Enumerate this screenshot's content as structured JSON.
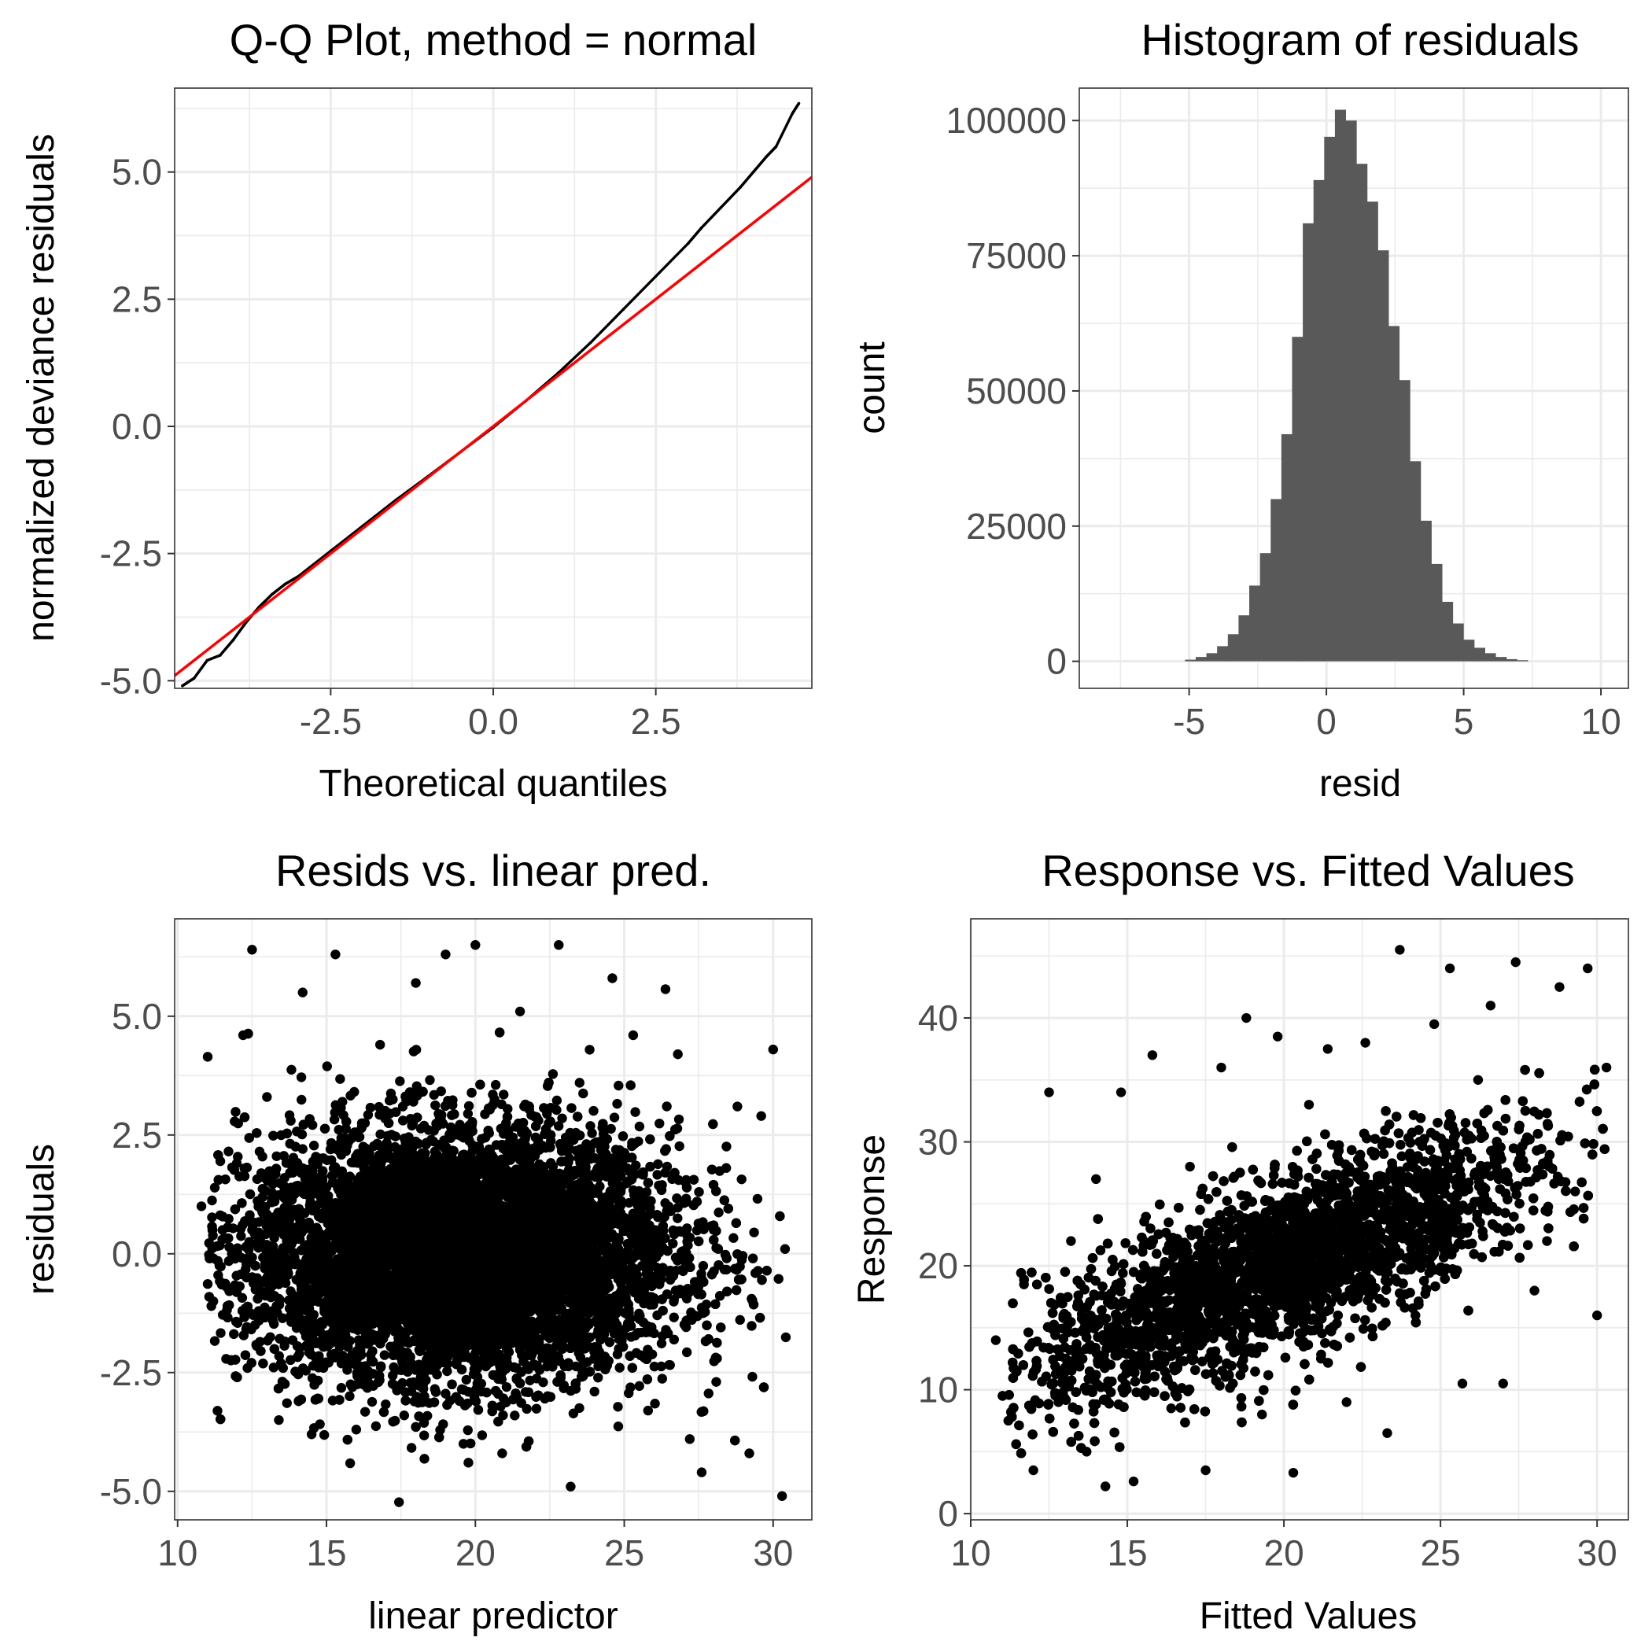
{
  "chart_data": [
    {
      "id": "qq",
      "type": "scatter",
      "title": "Q-Q Plot, method = normal",
      "xlabel": "Theoretical quantiles",
      "ylabel": "normalized deviance residuals",
      "xlim": [
        -4.9,
        4.9
      ],
      "ylim": [
        -5.15,
        6.65
      ],
      "xticks": [
        -2.5,
        0.0,
        2.5
      ],
      "xtick_labels": [
        "-2.5",
        "0.0",
        "2.5"
      ],
      "yticks": [
        -5.0,
        -2.5,
        0.0,
        2.5,
        5.0
      ],
      "ytick_labels": [
        "-5.0",
        "-2.5",
        "0.0",
        "2.5",
        "5.0"
      ],
      "grid": true,
      "reference_line": {
        "intercept": 0.0,
        "slope": 1.0,
        "color": "#ff0000"
      },
      "point_color": "#000000",
      "series": [
        {
          "x": [
            -4.78,
            -4.6,
            -4.4,
            -4.2,
            -4.0,
            -3.8,
            -3.6,
            -3.4,
            -3.2,
            -3.0,
            -2.5,
            -2.0,
            -1.5,
            -1.0,
            -0.5,
            0.0,
            0.5,
            1.0,
            1.5,
            2.0,
            2.5,
            3.0,
            3.2,
            3.5,
            3.8,
            4.0,
            4.2,
            4.35,
            4.6,
            4.7
          ],
          "y": [
            -5.1,
            -4.95,
            -4.6,
            -4.5,
            -4.2,
            -3.85,
            -3.55,
            -3.3,
            -3.1,
            -2.95,
            -2.45,
            -1.95,
            -1.45,
            -0.98,
            -0.5,
            -0.02,
            0.5,
            1.05,
            1.65,
            2.3,
            2.95,
            3.6,
            3.9,
            4.3,
            4.7,
            5.0,
            5.3,
            5.5,
            6.15,
            6.35
          ]
        }
      ]
    },
    {
      "id": "hist",
      "type": "bar",
      "title": "Histogram of residuals",
      "xlabel": "resid",
      "ylabel": "count",
      "xlim": [
        -9,
        11
      ],
      "ylim": [
        -5000,
        106000
      ],
      "xticks": [
        -5,
        0,
        5,
        10
      ],
      "xtick_labels": [
        "-5",
        "0",
        "5",
        "10"
      ],
      "yticks": [
        0,
        25000,
        50000,
        75000,
        100000
      ],
      "ytick_labels": [
        "0",
        "25000",
        "50000",
        "75000",
        "100000"
      ],
      "grid": true,
      "bar_color": "#595959",
      "bin_start": -5.15,
      "bin_width": 0.39,
      "values": [
        300,
        800,
        1500,
        2800,
        5000,
        8500,
        14000,
        20000,
        30000,
        42000,
        60000,
        81000,
        89000,
        97000,
        102000,
        100000,
        92000,
        85000,
        76000,
        62000,
        52000,
        37000,
        26000,
        18000,
        11000,
        7000,
        4000,
        2500,
        1500,
        800,
        400,
        200
      ]
    },
    {
      "id": "resid_lp",
      "type": "scatter",
      "title": "Resids vs. linear pred.",
      "xlabel": "linear predictor",
      "ylabel": "residuals",
      "xlim": [
        9.9,
        31.3
      ],
      "ylim": [
        -5.6,
        7.05
      ],
      "xticks": [
        10,
        15,
        20,
        25,
        30
      ],
      "xtick_labels": [
        "10",
        "15",
        "20",
        "25",
        "30"
      ],
      "yticks": [
        -5.0,
        -2.5,
        0.0,
        2.5,
        5.0
      ],
      "ytick_labels": [
        "-5.0",
        "-2.5",
        "0.0",
        "2.5",
        "5.0"
      ],
      "grid": true,
      "point_color": "#000000",
      "series": [
        {
          "x": [
            10.8,
            11.2,
            11.5,
            12.0,
            12.2,
            12.5,
            12.6,
            13.0,
            13.4,
            13.8,
            14.2,
            14.5,
            15.0,
            15.3,
            15.5,
            16.0,
            16.8,
            17.3,
            18.0,
            18.5,
            19.0,
            19.6,
            20.0,
            20.2,
            20.9,
            21.5,
            22.3,
            22.8,
            23.2,
            23.5,
            24.0,
            24.4,
            24.6,
            25.3,
            25.8,
            26.4,
            26.8,
            27.2,
            27.6,
            28.0,
            28.8,
            29.2,
            29.6,
            30.0,
            30.3,
            30.4
          ],
          "y": [
            1.0,
            -1.0,
            0.3,
            -2.6,
            4.6,
            6.4,
            -1.5,
            3.3,
            -3.5,
            2.8,
            5.5,
            -3.8,
            -1.0,
            6.3,
            1.5,
            -3.7,
            4.4,
            -1.2,
            5.7,
            0.4,
            6.3,
            -4.0,
            6.5,
            0.5,
            -4.2,
            5.1,
            -1.3,
            6.5,
            -4.9,
            3.6,
            -2.9,
            0.9,
            5.8,
            4.6,
            -3.3,
            -1.6,
            4.2,
            -3.9,
            -4.6,
            0.6,
            3.1,
            -4.2,
            2.9,
            4.3,
            -5.1,
            0.1
          ]
        }
      ]
    },
    {
      "id": "resp_fit",
      "type": "scatter",
      "title": "Response vs. Fitted Values",
      "xlabel": "Fitted Values",
      "ylabel": "Response",
      "xlim": [
        10.0,
        31.0
      ],
      "ylim": [
        -0.5,
        48.0
      ],
      "xticks": [
        10,
        15,
        20,
        25,
        30
      ],
      "xtick_labels": [
        "10",
        "15",
        "20",
        "25",
        "30"
      ],
      "yticks": [
        0,
        10,
        20,
        30,
        40
      ],
      "ytick_labels": [
        "0",
        "10",
        "20",
        "30",
        "40"
      ],
      "grid": true,
      "point_color": "#000000",
      "series": [
        {
          "x": [
            10.8,
            11.2,
            11.7,
            12.0,
            12.5,
            12.8,
            13.2,
            13.7,
            14.0,
            14.3,
            14.8,
            15.2,
            15.8,
            16.4,
            17.0,
            17.5,
            18.0,
            18.4,
            18.8,
            19.3,
            19.8,
            20.3,
            20.8,
            21.4,
            22.0,
            22.6,
            23.3,
            23.7,
            24.2,
            24.8,
            25.3,
            25.7,
            26.2,
            26.6,
            27.0,
            27.4,
            28.0,
            28.4,
            28.8,
            29.3,
            29.7,
            30.0,
            30.3
          ],
          "y": [
            14.0,
            7.5,
            18.5,
            3.5,
            34.0,
            9.0,
            22.0,
            5.0,
            27.0,
            2.2,
            34.0,
            2.6,
            37.0,
            8.5,
            28.0,
            3.5,
            36.0,
            13.0,
            40.0,
            8.0,
            38.5,
            3.3,
            33.0,
            37.5,
            9.0,
            38.0,
            6.5,
            45.5,
            16.0,
            39.5,
            44.0,
            10.5,
            35.0,
            41.0,
            10.5,
            44.5,
            18.0,
            22.0,
            42.5,
            26.0,
            44.0,
            16.0,
            36.0
          ]
        }
      ]
    }
  ]
}
